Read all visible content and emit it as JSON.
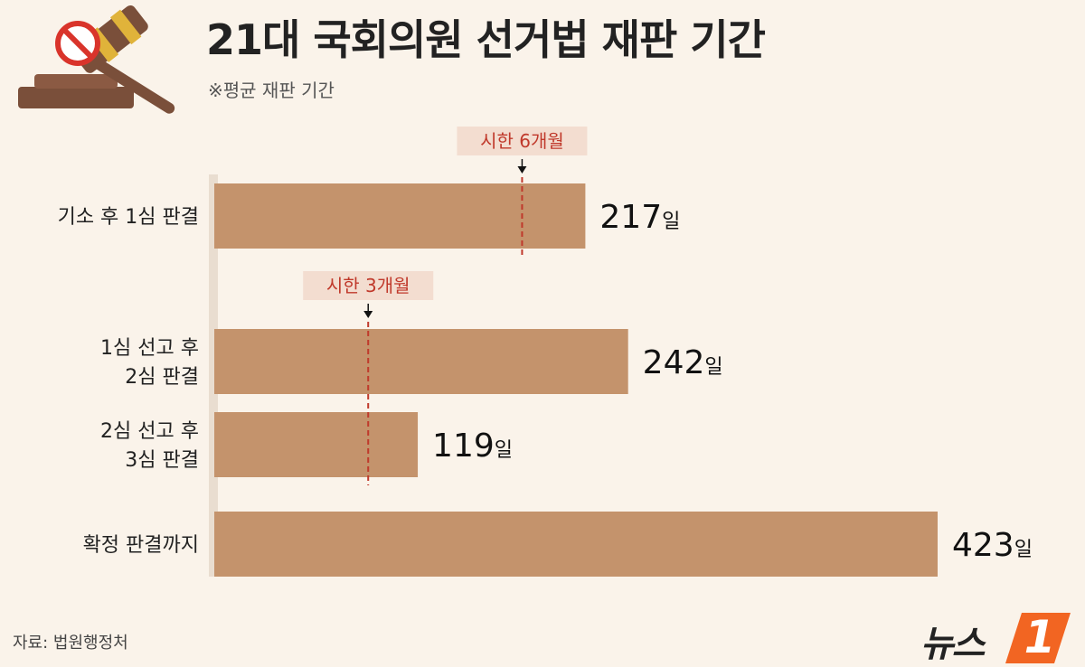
{
  "header": {
    "title": "21대 국회의원 선거법 재판 기간",
    "subtitle": "※평균 재판 기간"
  },
  "icons": {
    "gavel": "gavel-icon",
    "prohibition": "prohibition-icon"
  },
  "colors": {
    "background": "#faf3ea",
    "bar": "#c4936c",
    "limit_marker": "#c0392b",
    "limit_label_bg": "#f3ddd0",
    "logo_accent": "#f26522"
  },
  "chart_data": {
    "type": "bar",
    "orientation": "horizontal",
    "title": "21대 국회의원 선거법 재판 기간",
    "subtitle": "※평균 재판 기간",
    "categories": [
      [
        "기소 후 1심 판결"
      ],
      [
        "1심 선고 후",
        "2심 판결"
      ],
      [
        "2심 선고 후",
        "3심 판결"
      ],
      [
        "확정 판결까지"
      ]
    ],
    "values": [
      217,
      242,
      119,
      423
    ],
    "value_labels": [
      {
        "number": "217",
        "unit": "일"
      },
      {
        "number": "242",
        "unit": "일"
      },
      {
        "number": "119",
        "unit": "일"
      },
      {
        "number": "423",
        "unit": "일"
      }
    ],
    "xlim": [
      0,
      423
    ],
    "grid": false,
    "annotations": [
      {
        "label": "시한 6개월",
        "value": 180,
        "bars": [
          0
        ]
      },
      {
        "label": "시한 3개월",
        "value": 90,
        "bars": [
          1,
          2
        ]
      }
    ]
  },
  "footer": {
    "source": "자료: 법원행정처",
    "logo_text": "뉴스",
    "logo_mark": "1"
  }
}
